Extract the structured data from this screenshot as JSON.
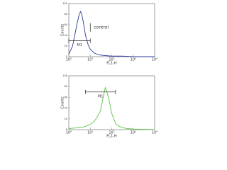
{
  "chart_data": [
    {
      "type": "line",
      "xscale": "log",
      "xlim": [
        1,
        10000
      ],
      "xticks": [
        {
          "value": 1,
          "label": "10⁰"
        },
        {
          "value": 10,
          "label": "10¹"
        },
        {
          "value": 100,
          "label": "10²"
        },
        {
          "value": 1000,
          "label": "10³"
        },
        {
          "value": 10000,
          "label": "10⁴"
        }
      ],
      "ylim": [
        0,
        100
      ],
      "yticks": [
        0,
        20,
        40,
        60,
        80,
        100
      ],
      "xlabel": "FL1-H",
      "ylabel": "Counts",
      "color": "#2b3a9c",
      "x": [
        1,
        1.5,
        2,
        2.5,
        3,
        3.5,
        4,
        5,
        6,
        8,
        10,
        15,
        20,
        30,
        50,
        100,
        300,
        1000,
        10000
      ],
      "values": [
        5,
        20,
        45,
        65,
        78,
        85,
        80,
        60,
        40,
        22,
        14,
        7,
        5,
        3,
        2,
        1,
        1,
        0,
        0
      ],
      "marker": {
        "label": "M1",
        "range": [
          1,
          10
        ],
        "y": 30
      },
      "annotation": {
        "text": "control",
        "x": 10,
        "y": 55
      }
    },
    {
      "type": "line",
      "xscale": "log",
      "xlim": [
        1,
        10000
      ],
      "xticks": [
        {
          "value": 1,
          "label": "10⁰"
        },
        {
          "value": 10,
          "label": "10¹"
        },
        {
          "value": 100,
          "label": "10²"
        },
        {
          "value": 1000,
          "label": "10³"
        },
        {
          "value": 10000,
          "label": "10⁴"
        }
      ],
      "ylim": [
        0,
        100
      ],
      "yticks": [
        0,
        20,
        40,
        60,
        80,
        100
      ],
      "xlabel": "FL1-H",
      "ylabel": "Counts",
      "color": "#5cc040",
      "x": [
        1,
        2,
        5,
        8,
        10,
        15,
        20,
        30,
        40,
        50,
        60,
        80,
        100,
        150,
        200,
        300,
        500,
        1000,
        10000
      ],
      "values": [
        2,
        3,
        5,
        8,
        10,
        15,
        22,
        35,
        60,
        78,
        70,
        50,
        30,
        12,
        7,
        4,
        2,
        1,
        0
      ],
      "marker": {
        "label": "M1",
        "range": [
          6,
          150
        ],
        "y": 70
      }
    }
  ]
}
